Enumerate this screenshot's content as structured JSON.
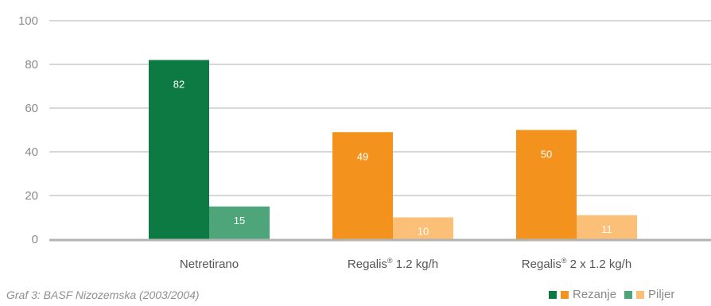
{
  "chart_data": {
    "type": "bar",
    "categories": [
      {
        "name": "Netretirano",
        "sup": ""
      },
      {
        "name": "Regalis",
        "sup": "®",
        "rest": " 1.2 kg/h"
      },
      {
        "name": "Regalis",
        "sup": "®",
        "rest": " 2 x 1.2 kg/h"
      }
    ],
    "series": [
      {
        "name": "Rezanje",
        "values": [
          82,
          49,
          50
        ]
      },
      {
        "name": "Piljenje",
        "values": [
          15,
          10,
          11
        ]
      }
    ],
    "bar_colors": [
      [
        "#0d7a43",
        "#4fa57a"
      ],
      [
        "#f3931e",
        "#fbbf78"
      ],
      [
        "#f3931e",
        "#fbbf78"
      ]
    ],
    "ylim": [
      0,
      100
    ],
    "yticks": [
      0,
      20,
      40,
      60,
      80,
      100
    ],
    "grid": true,
    "legend_position": "bottom-right"
  },
  "caption": "Graf 3: BASF Nizozemska (2003/2004)",
  "legend": {
    "items": [
      {
        "label": "Rezanje",
        "colors": [
          "#0d7a43",
          "#f3931e"
        ]
      },
      {
        "label": "Piljenje",
        "colors": [
          "#4fa57a",
          "#fbbf78"
        ]
      }
    ],
    "visible_text": [
      "Rezanje",
      "Piljer"
    ]
  },
  "colors": {
    "grid": "#b0b0b0",
    "baseline": "#b3b3b3",
    "tick_text": "#8a8a8a",
    "category_text": "#555555"
  }
}
